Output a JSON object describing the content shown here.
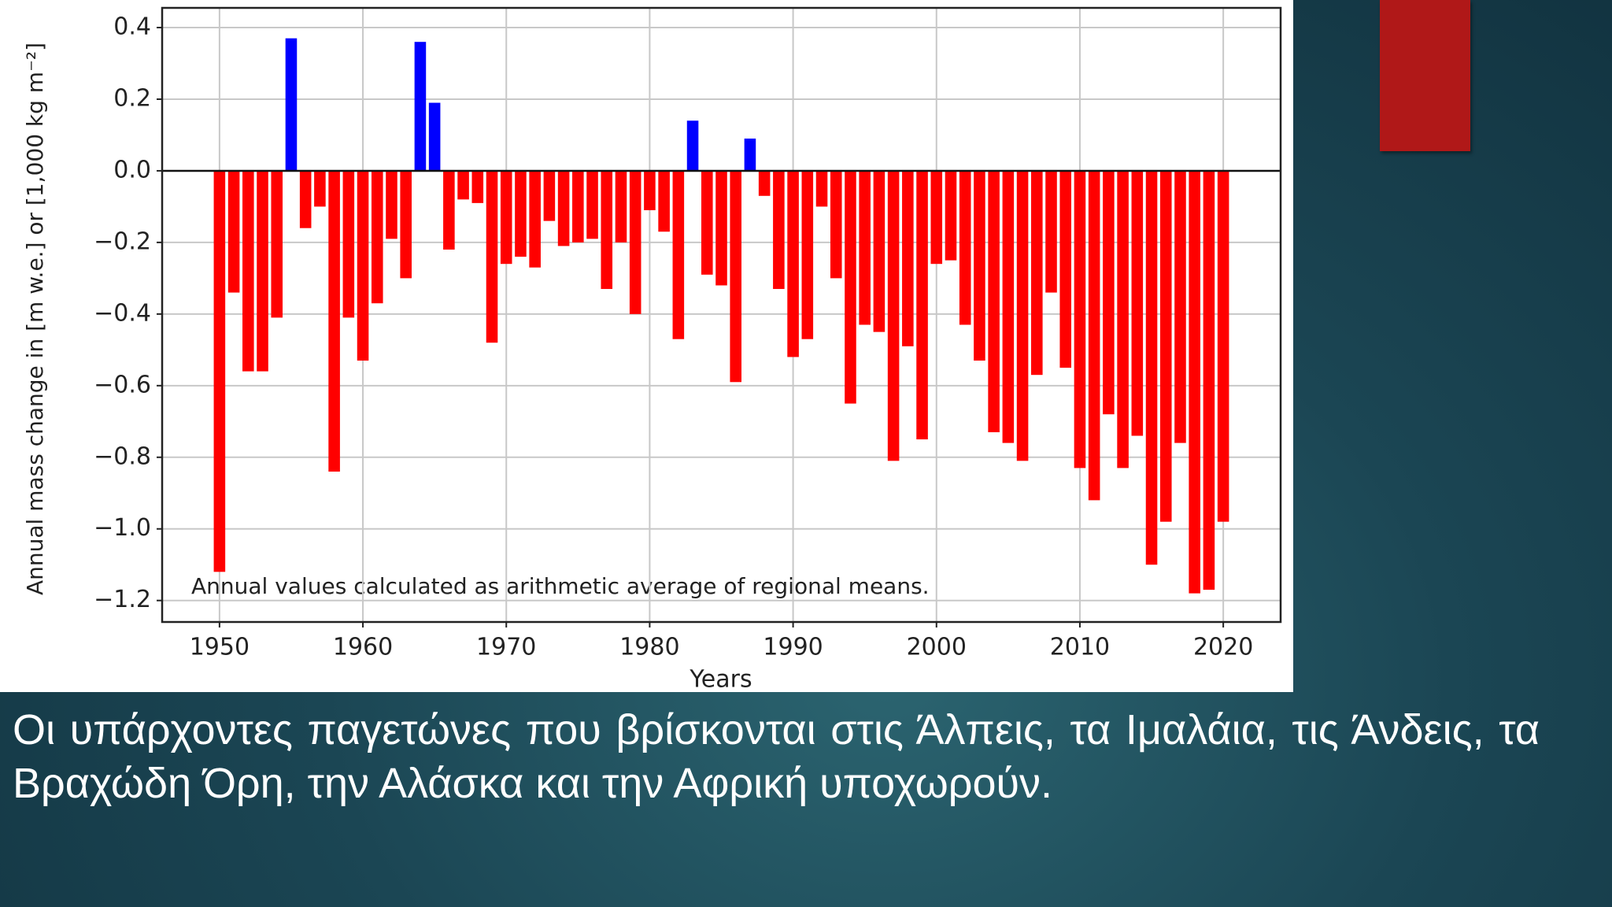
{
  "chart_data": {
    "type": "bar",
    "y_label": "Annual mass change in [m w.e.] or [1,000 kg m⁻²]",
    "x_label": "Years",
    "annotation": "Annual values calculated as arithmetic average of regional means.",
    "x": [
      1950,
      1951,
      1952,
      1953,
      1954,
      1955,
      1956,
      1957,
      1958,
      1959,
      1960,
      1961,
      1962,
      1963,
      1964,
      1965,
      1966,
      1967,
      1968,
      1969,
      1970,
      1971,
      1972,
      1973,
      1974,
      1975,
      1976,
      1977,
      1978,
      1979,
      1980,
      1981,
      1982,
      1983,
      1984,
      1985,
      1986,
      1987,
      1988,
      1989,
      1990,
      1991,
      1992,
      1993,
      1994,
      1995,
      1996,
      1997,
      1998,
      1999,
      2000,
      2001,
      2002,
      2003,
      2004,
      2005,
      2006,
      2007,
      2008,
      2009,
      2010,
      2011,
      2012,
      2013,
      2014,
      2015,
      2016,
      2017,
      2018,
      2019,
      2020
    ],
    "values": [
      -1.12,
      -0.34,
      -0.56,
      -0.56,
      -0.41,
      0.37,
      -0.16,
      -0.1,
      -0.84,
      -0.41,
      -0.53,
      -0.37,
      -0.19,
      -0.3,
      0.36,
      0.19,
      -0.22,
      -0.08,
      -0.09,
      -0.48,
      -0.26,
      -0.24,
      -0.27,
      -0.14,
      -0.21,
      -0.2,
      -0.19,
      -0.33,
      -0.2,
      -0.4,
      -0.11,
      -0.17,
      -0.47,
      0.14,
      -0.29,
      -0.32,
      -0.59,
      0.09,
      -0.07,
      -0.33,
      -0.52,
      -0.47,
      -0.1,
      -0.3,
      -0.65,
      -0.43,
      -0.45,
      -0.81,
      -0.49,
      -0.75,
      -0.26,
      -0.25,
      -0.43,
      -0.53,
      -0.73,
      -0.76,
      -0.81,
      -0.57,
      -0.34,
      -0.55,
      -0.83,
      -0.92,
      -0.68,
      -0.83,
      -0.74,
      -1.1,
      -0.98,
      -0.76,
      -1.18,
      -1.17,
      -0.98
    ],
    "color_positive": "#0000ff",
    "color_negative": "#ff0000",
    "xlim": [
      1946,
      2024
    ],
    "xticks": [
      1950,
      1960,
      1970,
      1980,
      1990,
      2000,
      2010,
      2020
    ],
    "ylim": [
      -1.26,
      0.455
    ],
    "yticks": [
      0.4,
      0.2,
      {
        "value": 0,
        "label": "0.0"
      },
      {
        "value": -0.2,
        "label": "−0.2"
      },
      {
        "value": -0.4,
        "label": "−0.4"
      },
      {
        "value": -0.6,
        "label": "−0.6"
      },
      {
        "value": -0.8,
        "label": "−0.8"
      },
      {
        "value": -1.0,
        "label": "−1.0"
      },
      {
        "value": -1.2,
        "label": "−1.2"
      }
    ],
    "grid": true
  },
  "slide": {
    "caption": "Οι υπάρχοντες παγετώνες που βρίσκονται στις Άλπεις, τα Ιμαλάια, τις Άνδεις, τα Βραχώδη Όρη, την Αλάσκα και την Αφρική υποχωρούν."
  }
}
